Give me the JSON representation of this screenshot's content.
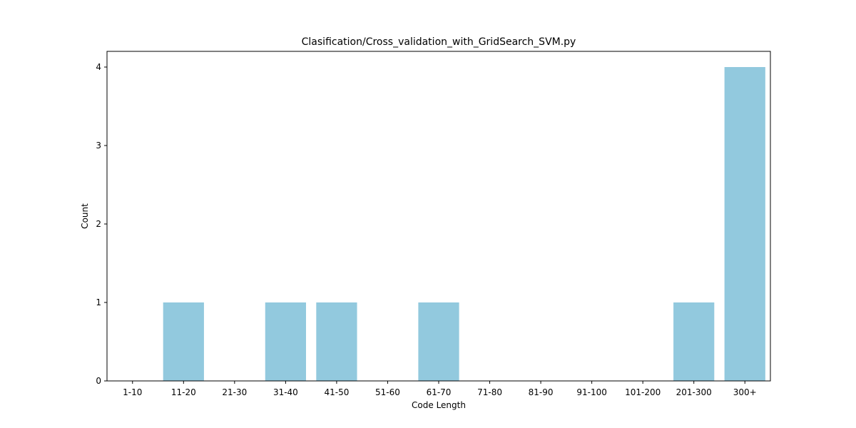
{
  "chart_data": {
    "type": "bar",
    "title": "Clasification/Cross_validation_with_GridSearch_SVM.py",
    "xlabel": "Code Length",
    "ylabel": "Count",
    "categories": [
      "1-10",
      "11-20",
      "21-30",
      "31-40",
      "41-50",
      "51-60",
      "61-70",
      "71-80",
      "81-90",
      "91-100",
      "101-200",
      "201-300",
      "300+"
    ],
    "values": [
      0,
      1,
      0,
      1,
      1,
      0,
      1,
      0,
      0,
      0,
      0,
      1,
      4
    ],
    "ylim": [
      0,
      4.2
    ],
    "yticks": [
      "0",
      "1",
      "2",
      "3",
      "4"
    ],
    "bar_color": "#92c9de",
    "grid": false,
    "legend": "none"
  }
}
